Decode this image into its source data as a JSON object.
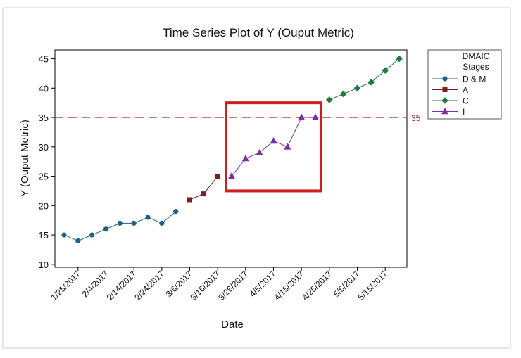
{
  "chart_data": {
    "type": "line",
    "title": "Time Series Plot of Y (Ouput Metric)",
    "xlabel": "Date",
    "ylabel": "Y (Ouput Metric)",
    "x": [
      "2017-01-20",
      "2017-01-25",
      "2017-01-30",
      "2017-02-04",
      "2017-02-09",
      "2017-02-14",
      "2017-02-19",
      "2017-02-24",
      "2017-03-01",
      "2017-03-06",
      "2017-03-11",
      "2017-03-16",
      "2017-03-21",
      "2017-03-26",
      "2017-03-31",
      "2017-04-05",
      "2017-04-10",
      "2017-04-15",
      "2017-04-20",
      "2017-04-25",
      "2017-04-30",
      "2017-05-05",
      "2017-05-10",
      "2017-05-15",
      "2017-05-20"
    ],
    "xticks": [
      "1/25/2017",
      "2/4/2017",
      "2/14/2017",
      "2/24/2017",
      "3/6/2017",
      "3/16/2017",
      "3/26/2017",
      "4/5/2017",
      "4/15/2017",
      "4/25/2017",
      "5/5/2017",
      "5/15/2017"
    ],
    "ylim": [
      9.5,
      46.5
    ],
    "yticks": [
      10,
      15,
      20,
      25,
      30,
      35,
      40,
      45
    ],
    "legend_title": "DMAIC\nStages",
    "legend_position": "right",
    "grid": false,
    "series": [
      {
        "name": "D & M",
        "color": "#1f5f8b",
        "marker": "circle",
        "x": [
          "2017-01-20",
          "2017-01-25",
          "2017-01-30",
          "2017-02-04",
          "2017-02-09",
          "2017-02-14",
          "2017-02-19",
          "2017-02-24",
          "2017-03-01"
        ],
        "values": [
          15,
          14,
          15,
          16,
          17,
          17,
          18,
          17,
          19
        ]
      },
      {
        "name": "A",
        "color": "#7b1e1e",
        "marker": "square",
        "x": [
          "2017-03-06",
          "2017-03-11",
          "2017-03-16"
        ],
        "values": [
          21,
          22,
          25
        ]
      },
      {
        "name": "C",
        "color": "#1e7a3c",
        "marker": "diamond",
        "x": [
          "2017-04-25",
          "2017-04-30",
          "2017-05-05",
          "2017-05-10",
          "2017-05-15",
          "2017-05-20"
        ],
        "values": [
          38,
          39,
          40,
          41,
          43,
          45
        ]
      },
      {
        "name": "I",
        "color": "#7b2fa3",
        "marker": "triangle",
        "x": [
          "2017-03-21",
          "2017-03-26",
          "2017-03-31",
          "2017-04-05",
          "2017-04-10",
          "2017-04-15",
          "2017-04-20"
        ],
        "values": [
          25,
          28,
          29,
          31,
          30,
          35,
          35
        ]
      }
    ],
    "reference_line": {
      "value": 35,
      "label": "35",
      "color": "#b22222",
      "style": "dashed"
    },
    "highlight_box": {
      "x": [
        "2017-03-21",
        "2017-04-22"
      ],
      "y": [
        22.5,
        37.5
      ],
      "color": "#cc1f1f"
    }
  }
}
